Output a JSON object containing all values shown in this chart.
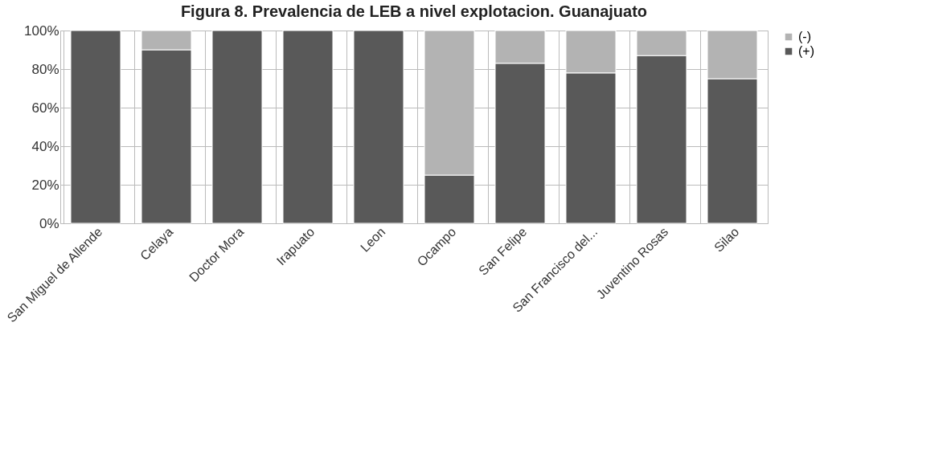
{
  "chart_data": {
    "type": "bar",
    "title": "Figura 8. Prevalencia de LEB a nivel explotacion. Guanajuato",
    "categories": [
      "San Miguel de Allende",
      "Celaya",
      "Doctor Mora",
      "Irapuato",
      "Leon",
      "Ocampo",
      "San Felipe",
      "San Francisco del...",
      "Juventino Rosas",
      "Silao"
    ],
    "series": [
      {
        "name": "(+)",
        "color": "#595959",
        "values": [
          100,
          90,
          100,
          100,
          100,
          25,
          83,
          78,
          87,
          75
        ]
      },
      {
        "name": "(-)",
        "color": "#b3b3b3",
        "values": [
          null,
          10,
          null,
          null,
          null,
          75,
          17,
          22,
          13,
          25
        ]
      }
    ],
    "stacked": true,
    "ylim": [
      0,
      100
    ],
    "yticks": [
      {
        "value": 0,
        "label": "0%"
      },
      {
        "value": 20,
        "label": "20%"
      },
      {
        "value": 40,
        "label": "40%"
      },
      {
        "value": 60,
        "label": "60%"
      },
      {
        "value": 80,
        "label": "80%"
      },
      {
        "value": 100,
        "label": "100%"
      }
    ],
    "grid": true,
    "legend": "right"
  }
}
